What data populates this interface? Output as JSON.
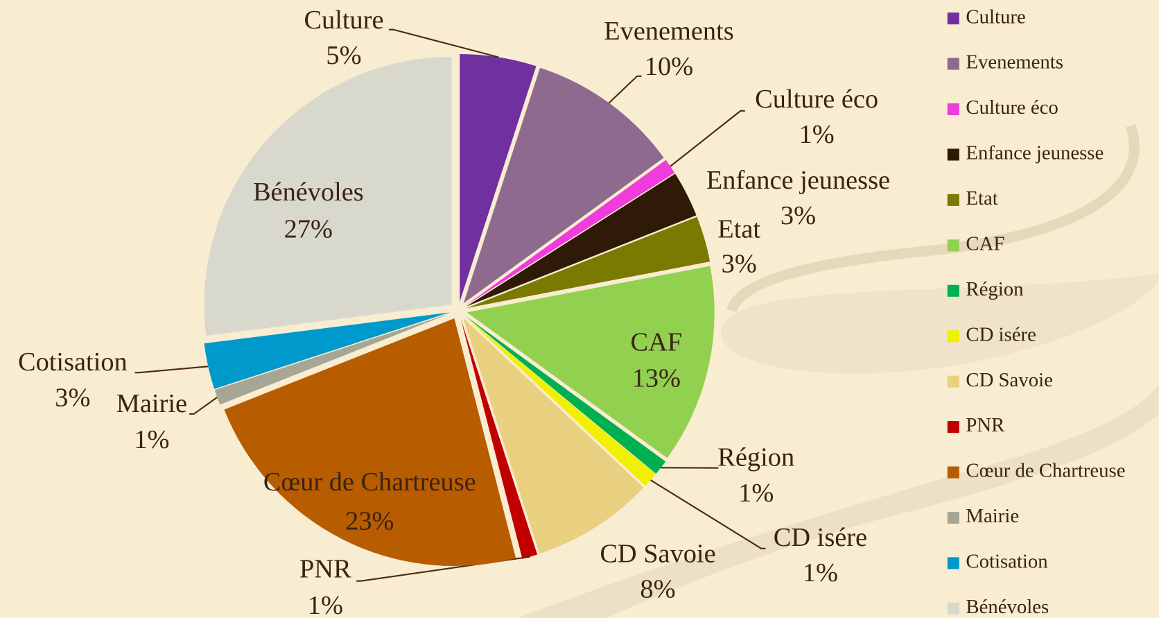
{
  "chart_data": {
    "type": "pie",
    "categories": [
      "Culture",
      "Evenements",
      "Culture éco",
      "Enfance jeunesse",
      "Etat",
      "CAF",
      "Région",
      "CD isére",
      "CD Savoie",
      "PNR",
      "Cœur de Chartreuse",
      "Mairie",
      "Cotisation",
      "Bénévoles"
    ],
    "values": [
      5,
      10,
      1,
      3,
      3,
      13,
      1,
      1,
      8,
      1,
      23,
      1,
      3,
      27
    ],
    "value_labels": [
      "5%",
      "10%",
      "1%",
      "3%",
      "3%",
      "13%",
      "1%",
      "1%",
      "8%",
      "1%",
      "23%",
      "1%",
      "3%",
      "27%"
    ],
    "colors": [
      "#7030a0",
      "#8e6a8e",
      "#f03cdc",
      "#2e1a06",
      "#7a7a00",
      "#92d050",
      "#00b050",
      "#f0f000",
      "#e8d080",
      "#c00000",
      "#b85c00",
      "#a6a696",
      "#0099cc",
      "#d8d8cc"
    ],
    "legend": "right"
  }
}
